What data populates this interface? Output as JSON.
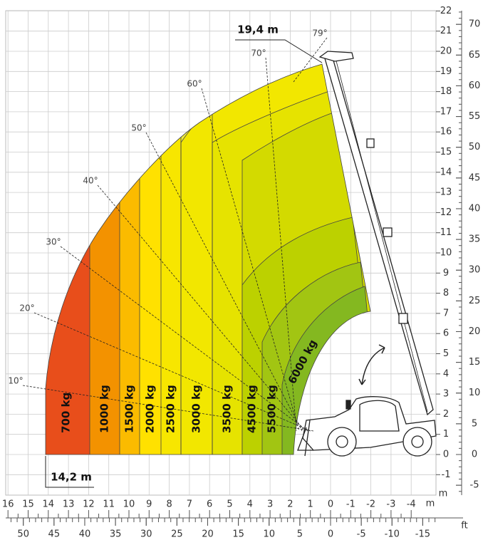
{
  "load_zones": [
    "700 kg",
    "1000 kg",
    "1500 kg",
    "2000 kg",
    "2500 kg",
    "3000 kg",
    "3500 kg",
    "4500 kg",
    "5500 kg",
    "6000 kg"
  ],
  "max_height": "19,4 m",
  "max_outreach": "14,2 m",
  "angles": [
    "10°",
    "20°",
    "30°",
    "40°",
    "50°",
    "60°",
    "70°",
    "79°"
  ],
  "vertical_m": [
    22,
    21,
    20,
    19,
    18,
    17,
    16,
    15,
    14,
    13,
    12,
    11,
    10,
    9,
    8,
    7,
    6,
    5,
    4,
    3,
    2,
    1,
    0,
    -1
  ],
  "vertical_ft": [
    70,
    65,
    60,
    55,
    50,
    45,
    40,
    35,
    30,
    25,
    20,
    15,
    10,
    5,
    0,
    -5
  ],
  "vertical_unit": "m",
  "horizontal_m": [
    16,
    15,
    14,
    13,
    12,
    11,
    10,
    9,
    8,
    7,
    6,
    5,
    4,
    3,
    2,
    1,
    0,
    -1,
    -2,
    -3,
    -4
  ],
  "horizontal_unit": "m",
  "horizontal_ft": [
    50,
    45,
    40,
    35,
    30,
    25,
    20,
    15,
    10,
    5,
    0,
    -5,
    -10,
    -15
  ],
  "horizontal_ft_unit": "ft"
}
